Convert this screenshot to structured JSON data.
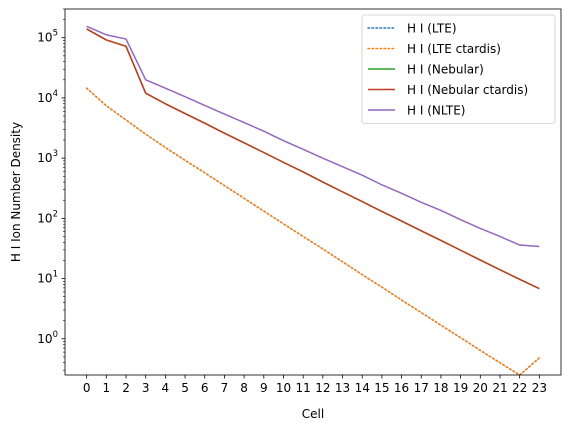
{
  "chart_data": {
    "type": "line",
    "xlabel": "Cell",
    "ylabel": "H I Ion Number Density",
    "yscale": "log",
    "ylim": [
      0.25,
      300000
    ],
    "xlim": [
      -1.1,
      24.1
    ],
    "x": [
      0,
      1,
      2,
      3,
      4,
      5,
      6,
      7,
      8,
      9,
      10,
      11,
      12,
      13,
      14,
      15,
      16,
      17,
      18,
      19,
      20,
      21,
      22,
      23
    ],
    "x_tick_labels": [
      "0",
      "1",
      "2",
      "3",
      "4",
      "5",
      "6",
      "7",
      "8",
      "9",
      "10",
      "11",
      "12",
      "13",
      "14",
      "15",
      "16",
      "17",
      "18",
      "19",
      "20",
      "21",
      "22",
      "23"
    ],
    "y_ticks": [
      1,
      10,
      100,
      1000,
      10000,
      100000
    ],
    "y_tick_labels": [
      "10^0",
      "10^1",
      "10^2",
      "10^3",
      "10^4",
      "10^5"
    ],
    "legend_position": "top-right",
    "series": [
      {
        "name": "H I (LTE)",
        "color": "#1f77b4",
        "dash": "dotted",
        "values": [
          14500,
          7400,
          4300,
          2500,
          1500,
          920,
          570,
          350,
          215,
          132,
          81,
          50,
          31,
          19,
          11.6,
          7.2,
          4.4,
          2.72,
          1.68,
          1.04,
          0.64,
          0.4,
          0.25,
          0.48
        ]
      },
      {
        "name": "H I (LTE ctardis)",
        "color": "#ff7f0e",
        "dash": "dotted",
        "values": [
          14500,
          7400,
          4300,
          2500,
          1500,
          920,
          570,
          350,
          215,
          132,
          81,
          50,
          31,
          19,
          11.6,
          7.2,
          4.4,
          2.72,
          1.68,
          1.04,
          0.64,
          0.4,
          0.25,
          0.48
        ]
      },
      {
        "name": "H I (Nebular)",
        "color": "#2ca02c",
        "dash": "solid",
        "values": [
          140000,
          92000,
          72000,
          12000,
          8000,
          5500,
          3800,
          2600,
          1800,
          1240,
          850,
          590,
          400,
          275,
          190,
          130,
          90,
          62,
          43,
          29.5,
          20.3,
          14,
          9.7,
          6.8
        ]
      },
      {
        "name": "H I (Nebular ctardis)",
        "color": "#c23b22",
        "dash": "solid",
        "values": [
          140000,
          92000,
          72000,
          12000,
          8000,
          5500,
          3800,
          2600,
          1800,
          1240,
          850,
          590,
          400,
          275,
          190,
          130,
          90,
          62,
          43,
          29.5,
          20.3,
          14,
          9.7,
          6.8
        ]
      },
      {
        "name": "H I (NLTE)",
        "color": "#9467bd",
        "dash": "solid",
        "values": [
          155000,
          112000,
          95000,
          20000,
          14500,
          10500,
          7500,
          5400,
          3900,
          2800,
          1950,
          1400,
          1000,
          720,
          520,
          360,
          260,
          185,
          135,
          95,
          68,
          50,
          36,
          34
        ]
      }
    ]
  }
}
